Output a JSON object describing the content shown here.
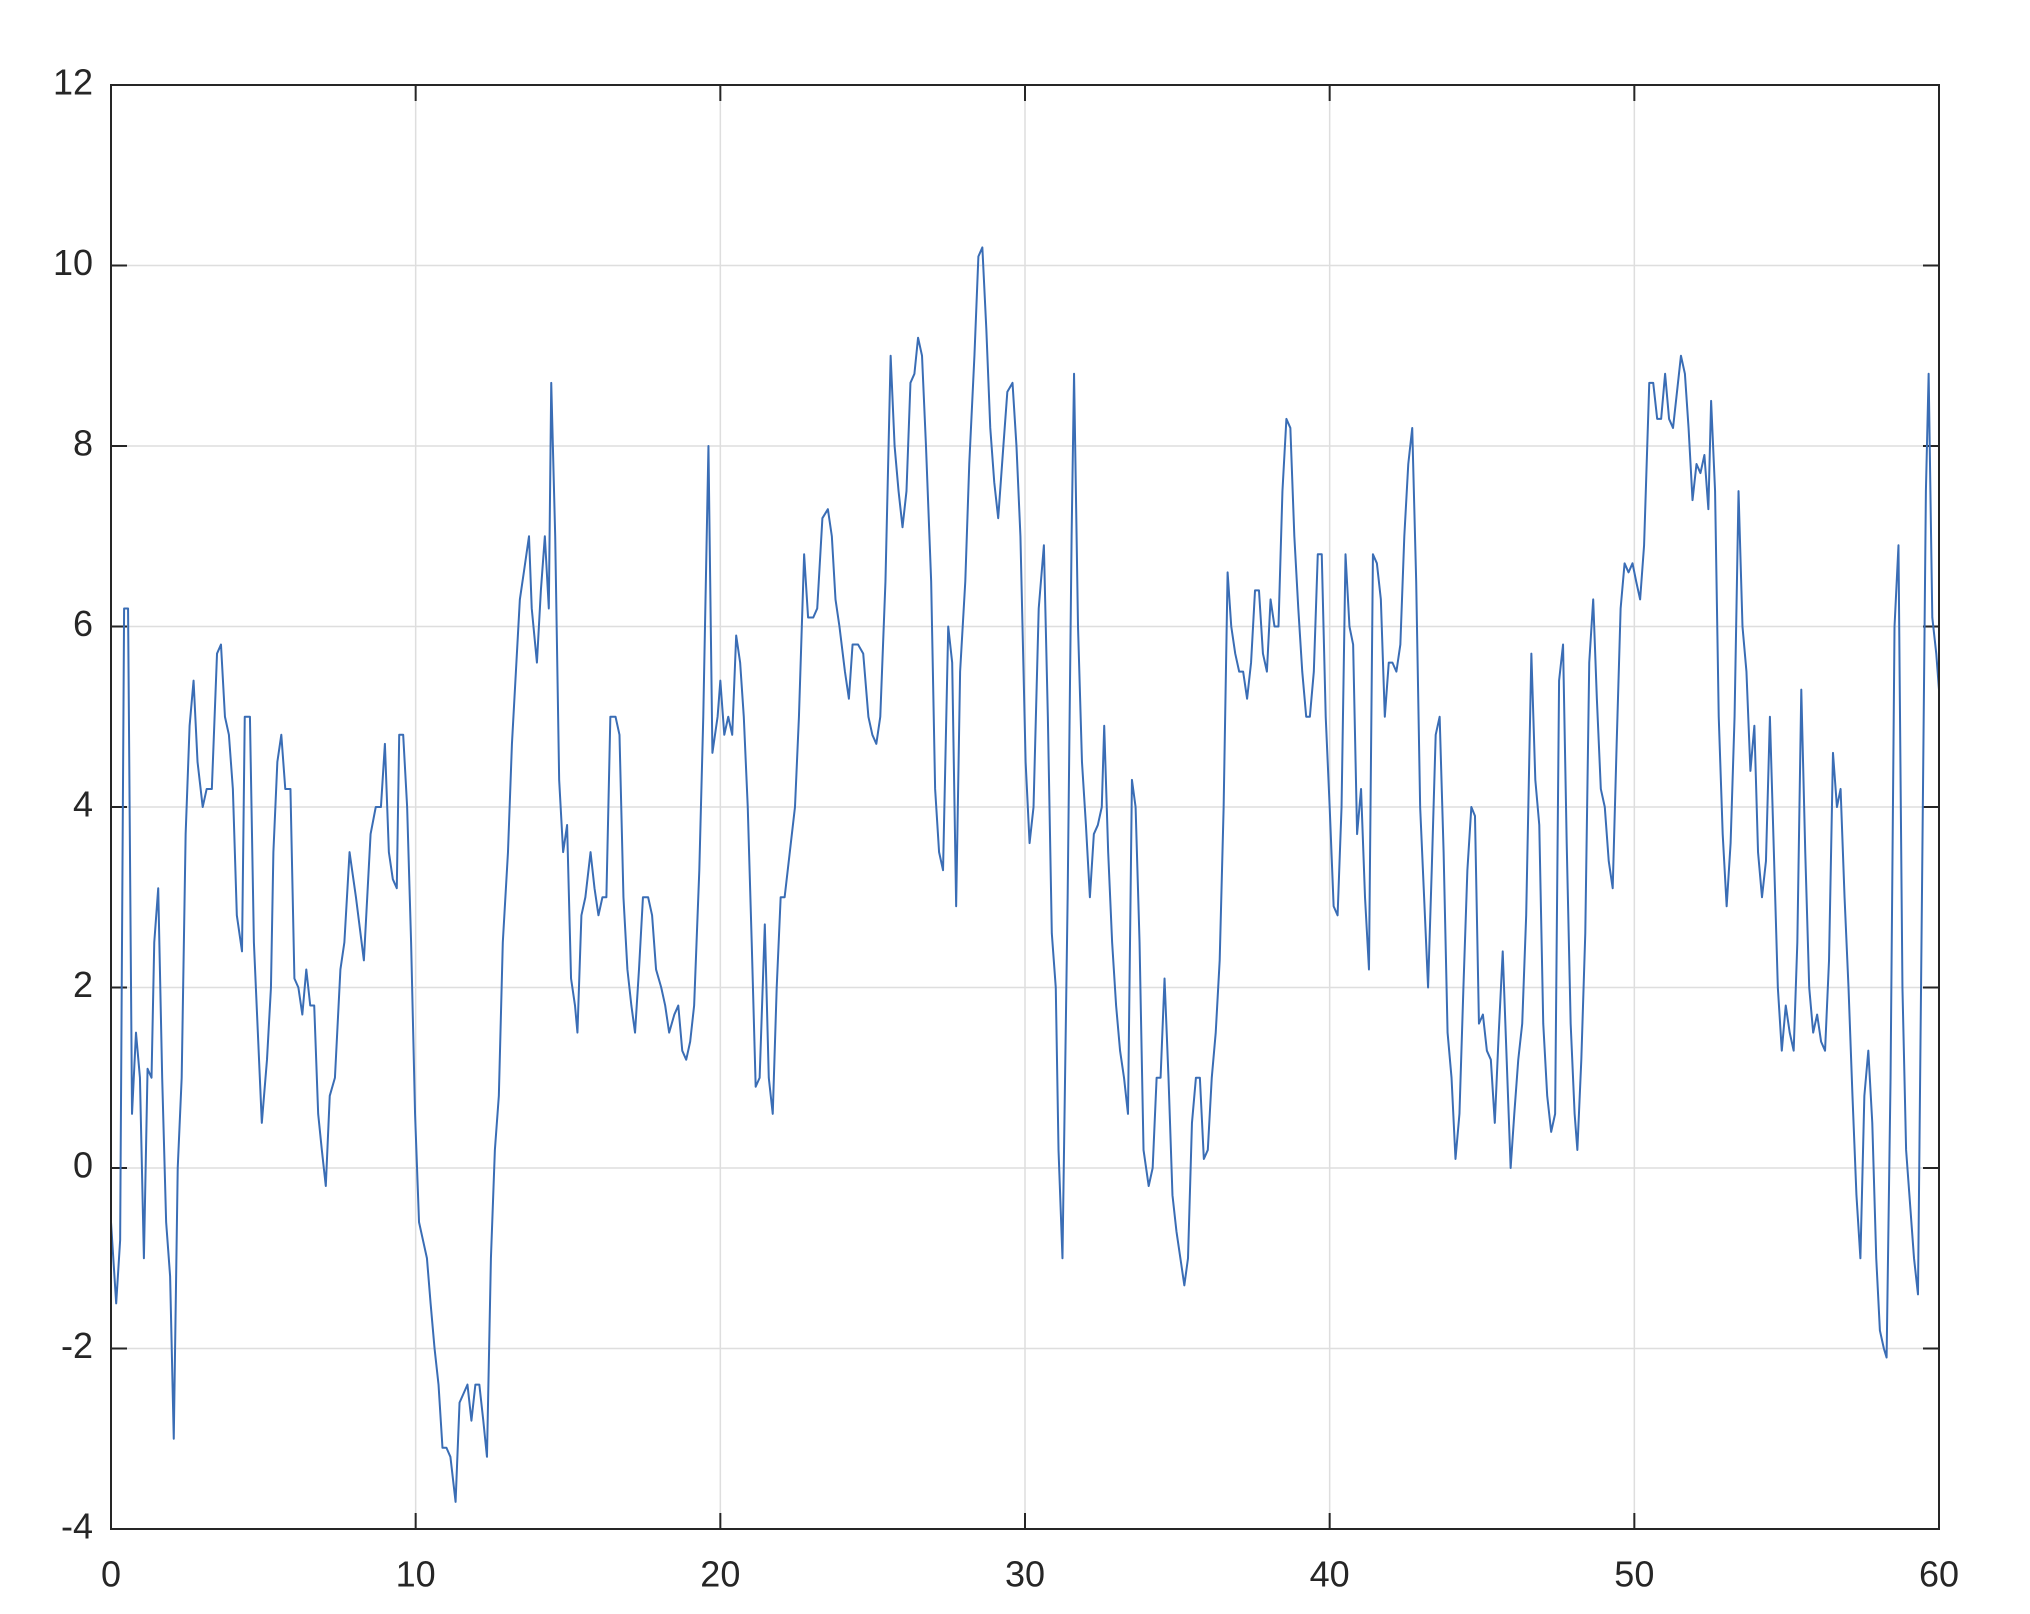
{
  "chart_data": {
    "type": "line",
    "color": "#3a6db5",
    "grid": true,
    "xlim": [
      0,
      60
    ],
    "xticks": [
      0,
      10,
      20,
      30,
      40,
      50,
      60
    ],
    "ylim": [
      -4,
      12
    ],
    "yticks": [
      -4,
      -2,
      0,
      2,
      4,
      6,
      8,
      10,
      12
    ],
    "x": [
      0,
      0.17,
      0.3,
      0.43,
      0.56,
      0.69,
      0.82,
      0.95,
      1.08,
      1.2,
      1.33,
      1.42,
      1.55,
      1.68,
      1.81,
      1.94,
      2.06,
      2.19,
      2.32,
      2.45,
      2.58,
      2.71,
      2.84,
      3.01,
      3.14,
      3.31,
      3.48,
      3.61,
      3.74,
      3.87,
      4.0,
      4.13,
      4.3,
      4.39,
      4.56,
      4.69,
      4.82,
      4.95,
      5.12,
      5.25,
      5.33,
      5.46,
      5.59,
      5.72,
      5.89,
      6.02,
      6.15,
      6.28,
      6.41,
      6.54,
      6.67,
      6.8,
      6.92,
      7.05,
      7.18,
      7.35,
      7.53,
      7.66,
      7.83,
      8.04,
      8.3,
      8.52,
      8.69,
      8.86,
      8.99,
      9.12,
      9.25,
      9.38,
      9.46,
      9.59,
      9.72,
      9.85,
      9.98,
      10.11,
      10.24,
      10.37,
      10.49,
      10.62,
      10.75,
      10.88,
      11.01,
      11.14,
      11.31,
      11.44,
      11.57,
      11.7,
      11.83,
      11.96,
      12.09,
      12.22,
      12.34,
      12.47,
      12.6,
      12.73,
      12.86,
      13.03,
      13.16,
      13.29,
      13.42,
      13.55,
      13.72,
      13.81,
      13.98,
      14.11,
      14.24,
      14.37,
      14.45,
      14.58,
      14.71,
      14.84,
      14.97,
      15.1,
      15.23,
      15.31,
      15.44,
      15.57,
      15.74,
      15.87,
      16.0,
      16.13,
      16.26,
      16.39,
      16.56,
      16.69,
      16.82,
      16.95,
      17.08,
      17.2,
      17.33,
      17.46,
      17.63,
      17.76,
      17.89,
      18.06,
      18.19,
      18.32,
      18.49,
      18.62,
      18.75,
      18.88,
      19.01,
      19.14,
      19.31,
      19.44,
      19.61,
      19.74,
      19.91,
      20.0,
      20.13,
      20.26,
      20.39,
      20.52,
      20.65,
      20.77,
      20.9,
      21.03,
      21.16,
      21.29,
      21.46,
      21.59,
      21.72,
      21.85,
      21.98,
      22.11,
      22.28,
      22.45,
      22.58,
      22.75,
      22.88,
      23.05,
      23.18,
      23.35,
      23.53,
      23.66,
      23.78,
      23.91,
      24.09,
      24.22,
      24.34,
      24.52,
      24.69,
      24.86,
      24.99,
      25.12,
      25.25,
      25.42,
      25.59,
      25.72,
      25.85,
      25.98,
      26.11,
      26.24,
      26.37,
      26.49,
      26.62,
      26.75,
      26.92,
      27.05,
      27.18,
      27.31,
      27.48,
      27.61,
      27.74,
      27.87,
      28.04,
      28.17,
      28.34,
      28.47,
      28.6,
      28.73,
      28.86,
      28.99,
      29.12,
      29.29,
      29.42,
      29.59,
      29.72,
      29.85,
      30.02,
      30.15,
      30.28,
      30.45,
      30.62,
      30.75,
      30.88,
      31.01,
      31.1,
      31.23,
      31.4,
      31.53,
      31.61,
      31.74,
      31.87,
      32.0,
      32.13,
      32.26,
      32.39,
      32.52,
      32.6,
      32.73,
      32.86,
      32.99,
      33.12,
      33.25,
      33.38,
      33.51,
      33.63,
      33.76,
      33.89,
      34.06,
      34.19,
      34.32,
      34.45,
      34.58,
      34.71,
      34.84,
      34.97,
      35.1,
      35.23,
      35.35,
      35.48,
      35.61,
      35.74,
      35.87,
      36.0,
      36.13,
      36.26,
      36.39,
      36.52,
      36.65,
      36.77,
      36.9,
      37.03,
      37.16,
      37.29,
      37.42,
      37.55,
      37.68,
      37.81,
      37.94,
      38.06,
      38.19,
      38.32,
      38.45,
      38.58,
      38.71,
      38.84,
      38.97,
      39.1,
      39.23,
      39.35,
      39.48,
      39.61,
      39.74,
      39.87,
      40.0,
      40.13,
      40.26,
      40.39,
      40.52,
      40.65,
      40.77,
      40.9,
      41.03,
      41.16,
      41.29,
      41.42,
      41.55,
      41.68,
      41.81,
      41.94,
      42.06,
      42.19,
      42.32,
      42.45,
      42.58,
      42.71,
      42.84,
      42.97,
      43.1,
      43.23,
      43.35,
      43.48,
      43.61,
      43.74,
      43.87,
      44.0,
      44.13,
      44.26,
      44.39,
      44.52,
      44.65,
      44.77,
      44.9,
      45.03,
      45.16,
      45.29,
      45.42,
      45.55,
      45.68,
      45.81,
      45.94,
      46.06,
      46.19,
      46.32,
      46.45,
      46.62,
      46.75,
      46.88,
      47.01,
      47.14,
      47.27,
      47.4,
      47.53,
      47.66,
      47.78,
      47.91,
      48.04,
      48.13,
      48.26,
      48.39,
      48.52,
      48.65,
      48.77,
      48.9,
      49.03,
      49.16,
      49.29,
      49.42,
      49.55,
      49.68,
      49.81,
      49.94,
      50.06,
      50.19,
      50.32,
      50.49,
      50.62,
      50.75,
      50.88,
      51.01,
      51.14,
      51.27,
      51.4,
      51.53,
      51.66,
      51.78,
      51.91,
      52.04,
      52.17,
      52.3,
      52.43,
      52.52,
      52.65,
      52.77,
      52.9,
      53.03,
      53.16,
      53.29,
      53.42,
      53.55,
      53.68,
      53.81,
      53.94,
      54.06,
      54.19,
      54.32,
      54.45,
      54.58,
      54.71,
      54.84,
      54.97,
      55.1,
      55.23,
      55.35,
      55.48,
      55.61,
      55.74,
      55.87,
      56.0,
      56.13,
      56.26,
      56.39,
      56.52,
      56.65,
      56.77,
      56.9,
      57.03,
      57.16,
      57.29,
      57.42,
      57.55,
      57.68,
      57.81,
      57.94,
      58.06,
      58.19,
      58.28,
      58.41,
      58.54,
      58.67,
      58.8,
      58.92,
      59.05,
      59.18,
      59.31,
      59.44,
      59.57,
      59.66,
      59.78,
      59.91,
      60.0
    ],
    "series": [
      {
        "values": [
          -0.6,
          -1.5,
          -0.8,
          6.2,
          6.2,
          0.6,
          1.5,
          1.0,
          -1.0,
          1.1,
          1.0,
          2.5,
          3.1,
          1.0,
          -0.6,
          -1.2,
          -3.0,
          0,
          1.0,
          3.7,
          4.9,
          5.4,
          4.5,
          4.0,
          4.2,
          4.2,
          5.7,
          5.8,
          5.0,
          4.8,
          4.2,
          2.8,
          2.4,
          5.0,
          5.0,
          2.5,
          1.5,
          0.5,
          1.2,
          2.0,
          3.5,
          4.5,
          4.8,
          4.2,
          4.2,
          2.1,
          2.0,
          1.7,
          2.2,
          1.8,
          1.8,
          0.6,
          0.2,
          -0.2,
          0.8,
          1.0,
          2.2,
          2.5,
          3.5,
          3.0,
          2.3,
          3.7,
          4.0,
          4.0,
          4.7,
          3.5,
          3.2,
          3.1,
          4.8,
          4.8,
          4.0,
          2.5,
          0.6,
          -0.6,
          -0.8,
          -1.0,
          -1.5,
          -2.0,
          -2.4,
          -3.1,
          -3.1,
          -3.2,
          -3.7,
          -2.6,
          -2.5,
          -2.4,
          -2.8,
          -2.4,
          -2.4,
          -2.8,
          -3.2,
          -1.0,
          0.2,
          0.8,
          2.5,
          3.5,
          4.7,
          5.5,
          6.3,
          6.6,
          7.0,
          6.2,
          5.6,
          6.4,
          7.0,
          6.2,
          8.7,
          7.0,
          4.3,
          3.5,
          3.8,
          2.1,
          1.8,
          1.5,
          2.8,
          3.0,
          3.5,
          3.1,
          2.8,
          3.0,
          3.0,
          5.0,
          5.0,
          4.8,
          3.0,
          2.2,
          1.8,
          1.5,
          2.2,
          3.0,
          3.0,
          2.8,
          2.2,
          2.0,
          1.8,
          1.5,
          1.7,
          1.8,
          1.3,
          1.2,
          1.4,
          1.8,
          3.3,
          5.0,
          8.0,
          4.6,
          5.0,
          5.4,
          4.8,
          5.0,
          4.8,
          5.9,
          5.6,
          5.0,
          4.0,
          2.5,
          0.9,
          1.0,
          2.7,
          1.0,
          0.6,
          2.0,
          3.0,
          3.0,
          3.5,
          4.0,
          5.0,
          6.8,
          6.1,
          6.1,
          6.2,
          7.2,
          7.3,
          7.0,
          6.3,
          6.0,
          5.5,
          5.2,
          5.8,
          5.8,
          5.7,
          5.0,
          4.8,
          4.7,
          5.0,
          6.5,
          9.0,
          8.0,
          7.5,
          7.1,
          7.5,
          8.7,
          8.8,
          9.2,
          9.0,
          8.0,
          6.5,
          4.2,
          3.5,
          3.3,
          6.0,
          5.6,
          2.9,
          5.5,
          6.5,
          7.8,
          9.0,
          10.1,
          10.2,
          9.3,
          8.2,
          7.6,
          7.2,
          8.0,
          8.6,
          8.7,
          8.0,
          7.0,
          4.5,
          3.6,
          4.0,
          6.2,
          6.9,
          5.0,
          2.6,
          2.0,
          0.2,
          -1.0,
          3.0,
          7.0,
          8.8,
          6.0,
          4.5,
          3.8,
          3.0,
          3.7,
          3.8,
          4.0,
          4.9,
          3.5,
          2.5,
          1.8,
          1.3,
          1.0,
          0.6,
          4.3,
          4.0,
          2.5,
          0.2,
          -0.2,
          0.0,
          1.0,
          1.0,
          2.1,
          1.0,
          -0.3,
          -0.7,
          -1.0,
          -1.3,
          -1.0,
          0.5,
          1.0,
          1.0,
          0.1,
          0.2,
          1.0,
          1.5,
          2.3,
          4.0,
          6.6,
          6.0,
          5.7,
          5.5,
          5.5,
          5.2,
          5.6,
          6.4,
          6.4,
          5.7,
          5.5,
          6.3,
          6.0,
          6.0,
          7.5,
          8.3,
          8.2,
          7.0,
          6.2,
          5.5,
          5.0,
          5.0,
          5.5,
          6.8,
          6.8,
          5.0,
          4.0,
          2.9,
          2.8,
          4.0,
          6.8,
          6.0,
          5.8,
          3.7,
          4.2,
          3.0,
          2.2,
          6.8,
          6.7,
          6.3,
          5.0,
          5.6,
          5.6,
          5.5,
          5.8,
          7.0,
          7.8,
          8.2,
          6.5,
          4.0,
          3.0,
          2.0,
          3.3,
          4.8,
          5.0,
          3.5,
          1.5,
          1.0,
          0.1,
          0.6,
          2.0,
          3.3,
          4.0,
          3.9,
          1.6,
          1.7,
          1.3,
          1.2,
          0.5,
          1.5,
          2.4,
          1.2,
          0.0,
          0.6,
          1.2,
          1.6,
          2.8,
          5.7,
          4.3,
          3.8,
          1.6,
          0.8,
          0.4,
          0.6,
          5.4,
          5.8,
          3.6,
          1.6,
          0.6,
          0.2,
          1.2,
          2.6,
          5.6,
          6.3,
          5.2,
          4.2,
          4.0,
          3.4,
          3.1,
          4.7,
          6.2,
          6.7,
          6.6,
          6.7,
          6.5,
          6.3,
          6.9,
          8.7,
          8.7,
          8.3,
          8.3,
          8.8,
          8.3,
          8.2,
          8.6,
          9.0,
          8.8,
          8.2,
          7.4,
          7.8,
          7.7,
          7.9,
          7.3,
          8.5,
          7.5,
          5.0,
          3.7,
          2.9,
          3.6,
          5.0,
          7.5,
          6.0,
          5.5,
          4.4,
          4.9,
          3.5,
          3.0,
          3.4,
          5.0,
          3.5,
          2.0,
          1.3,
          1.8,
          1.5,
          1.3,
          2.5,
          5.3,
          3.5,
          2.0,
          1.5,
          1.7,
          1.4,
          1.3,
          2.3,
          4.6,
          4.0,
          4.2,
          3.0,
          2.0,
          0.8,
          -0.3,
          -1.0,
          0.8,
          1.3,
          0.5,
          -1.0,
          -1.8,
          -2.0,
          -2.1,
          1.0,
          6.0,
          6.9,
          2.0,
          0.2,
          -0.4,
          -1.0,
          -1.4,
          3.0,
          7.5,
          8.8,
          6.1,
          5.7,
          5.3
        ]
      }
    ]
  }
}
